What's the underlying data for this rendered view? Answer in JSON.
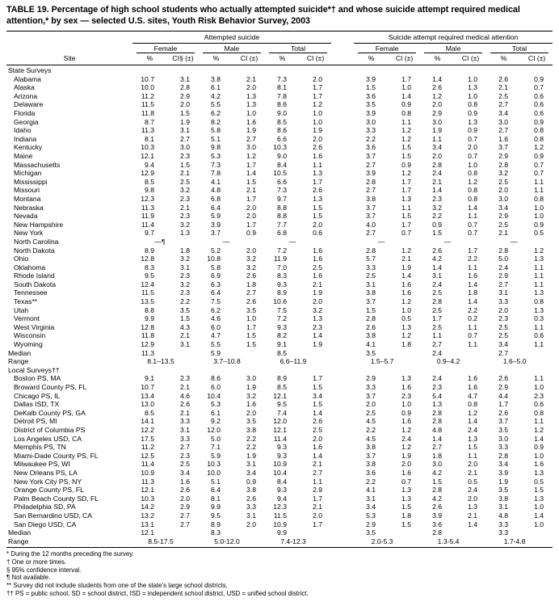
{
  "title": "TABLE 19. Percentage of high school students who actually attempted suicide*† and whose suicide attempt required medical attention,* by sex — selected U.S. sites, Youth Risk Behavior Survey, 2003",
  "header": {
    "site": "Site",
    "groups": [
      "Attempted suicide",
      "Suicide attempt required medical attention"
    ],
    "subgroups": [
      "Female",
      "Male",
      "Total"
    ],
    "pct": "%",
    "ci_first": "CI§ (±)",
    "ci": "CI (±)"
  },
  "sections": [
    {
      "name": "State Surveys",
      "rows": [
        {
          "site": "Alabama",
          "v": [
            "10.7",
            "3.1",
            "3.8",
            "2.1",
            "7.3",
            "2.0",
            "3.9",
            "1.7",
            "1.4",
            "1.0",
            "2.6",
            "0.9"
          ]
        },
        {
          "site": "Alaska",
          "v": [
            "10.0",
            "2.8",
            "6.1",
            "2.0",
            "8.1",
            "1.7",
            "1.5",
            "1.0",
            "2.6",
            "1.3",
            "2.1",
            "0.7"
          ]
        },
        {
          "site": "Arizona",
          "v": [
            "11.2",
            "2.9",
            "4.2",
            "1.3",
            "7.8",
            "1.7",
            "3.6",
            "1.4",
            "1.2",
            "1.0",
            "2.5",
            "0.6"
          ]
        },
        {
          "site": "Delaware",
          "v": [
            "11.5",
            "2.0",
            "5.5",
            "1.3",
            "8.6",
            "1.2",
            "3.5",
            "0.9",
            "2.0",
            "0.8",
            "2.7",
            "0.6"
          ]
        },
        {
          "site": "Florida",
          "v": [
            "11.8",
            "1.5",
            "6.2",
            "1.0",
            "9.0",
            "1.0",
            "3.9",
            "0.8",
            "2.9",
            "0.9",
            "3.4",
            "0.6"
          ]
        },
        {
          "site": "Georgia",
          "v": [
            "8.7",
            "1.9",
            "8.2",
            "1.6",
            "8.5",
            "1.0",
            "3.0",
            "1.1",
            "3.0",
            "1.3",
            "3.0",
            "0.9"
          ]
        },
        {
          "site": "Idaho",
          "v": [
            "11.3",
            "3.1",
            "5.8",
            "1.9",
            "8.6",
            "1.9",
            "3.3",
            "1.2",
            "1.9",
            "0.9",
            "2.7",
            "0.8"
          ]
        },
        {
          "site": "Indiana",
          "v": [
            "8.1",
            "2.7",
            "5.1",
            "2.7",
            "6.6",
            "2.0",
            "2.2",
            "1.2",
            "1.1",
            "0.7",
            "1.6",
            "0.8"
          ]
        },
        {
          "site": "Kentucky",
          "v": [
            "10.3",
            "3.0",
            "9.8",
            "3.0",
            "10.3",
            "2.6",
            "3.6",
            "1.5",
            "3.4",
            "2.0",
            "3.7",
            "1.2"
          ]
        },
        {
          "site": "Maine",
          "v": [
            "12.1",
            "2.3",
            "5.3",
            "1.2",
            "9.0",
            "1.6",
            "3.7",
            "1.5",
            "2.0",
            "0.7",
            "2.9",
            "0.9"
          ]
        },
        {
          "site": "Massachusetts",
          "v": [
            "9.4",
            "1.5",
            "7.3",
            "1.7",
            "8.4",
            "1.1",
            "2.7",
            "0.9",
            "2.8",
            "1.0",
            "2.8",
            "0.7"
          ]
        },
        {
          "site": "Michigan",
          "v": [
            "12.9",
            "2.1",
            "7.8",
            "1.4",
            "10.5",
            "1.3",
            "3.9",
            "1.2",
            "2.4",
            "0.8",
            "3.2",
            "0.7"
          ]
        },
        {
          "site": "Mississippi",
          "v": [
            "8.5",
            "2.5",
            "4.1",
            "1.5",
            "6.6",
            "1.7",
            "2.8",
            "1.7",
            "2.1",
            "1.2",
            "2.5",
            "1.1"
          ]
        },
        {
          "site": "Missouri",
          "v": [
            "9.8",
            "3.2",
            "4.8",
            "2.1",
            "7.3",
            "2.6",
            "2.7",
            "1.7",
            "1.4",
            "0.8",
            "2.0",
            "1.1"
          ]
        },
        {
          "site": "Montana",
          "v": [
            "12.3",
            "2.3",
            "6.8",
            "1.7",
            "9.7",
            "1.3",
            "3.8",
            "1.3",
            "2.3",
            "0.8",
            "3.0",
            "0.8"
          ]
        },
        {
          "site": "Nebraska",
          "v": [
            "11.3",
            "2.1",
            "6.4",
            "2.0",
            "8.8",
            "1.5",
            "3.7",
            "1.1",
            "3.2",
            "1.4",
            "3.4",
            "1.0"
          ]
        },
        {
          "site": "Nevada",
          "v": [
            "11.9",
            "2.3",
            "5.9",
            "2.0",
            "8.8",
            "1.5",
            "3.7",
            "1.5",
            "2.2",
            "1.1",
            "2.9",
            "1.0"
          ]
        },
        {
          "site": "New Hampshire",
          "v": [
            "11.4",
            "3.2",
            "3.9",
            "1.7",
            "7.7",
            "2.0",
            "4.0",
            "1.7",
            "0.9",
            "0.7",
            "2.5",
            "0.9"
          ]
        },
        {
          "site": "New York",
          "v": [
            "9.7",
            "1.3",
            "3.7",
            "0.9",
            "6.8",
            "0.6",
            "2.7",
            "0.7",
            "1.5",
            "0.7",
            "2.1",
            "0.5"
          ]
        },
        {
          "site": "North Carolina",
          "na": [
            "—¶",
            "—",
            "—",
            "—",
            "—",
            "—"
          ]
        },
        {
          "site": "North Dakota",
          "v": [
            "8.9",
            "1.8",
            "5.2",
            "2.0",
            "7.2",
            "1.6",
            "2.8",
            "1.2",
            "2.6",
            "1.7",
            "2.8",
            "1.2"
          ]
        },
        {
          "site": "Ohio",
          "v": [
            "12.8",
            "3.2",
            "10.8",
            "3.2",
            "11.9",
            "1.6",
            "5.7",
            "2.1",
            "4.2",
            "2.2",
            "5.0",
            "1.3"
          ]
        },
        {
          "site": "Oklahoma",
          "v": [
            "8.3",
            "3.1",
            "5.8",
            "3.2",
            "7.0",
            "2.5",
            "3.3",
            "1.9",
            "1.4",
            "1.1",
            "2.4",
            "1.1"
          ]
        },
        {
          "site": "Rhode Island",
          "v": [
            "9.5",
            "2.3",
            "6.9",
            "2.6",
            "8.3",
            "1.6",
            "2.5",
            "1.4",
            "3.1",
            "1.6",
            "2.9",
            "1.1"
          ]
        },
        {
          "site": "South Dakota",
          "v": [
            "12.4",
            "3.2",
            "6.3",
            "1.8",
            "9.3",
            "2.1",
            "3.1",
            "1.6",
            "2.4",
            "1.4",
            "2.7",
            "1.1"
          ]
        },
        {
          "site": "Tennessee",
          "v": [
            "11.5",
            "2.3",
            "6.4",
            "2.7",
            "8.9",
            "1.9",
            "3.8",
            "1.6",
            "2.5",
            "1.8",
            "3.1",
            "1.3"
          ]
        },
        {
          "site": "Texas**",
          "v": [
            "13.5",
            "2.2",
            "7.5",
            "2.6",
            "10.6",
            "2.0",
            "3.7",
            "1.2",
            "2.8",
            "1.4",
            "3.3",
            "0.8"
          ]
        },
        {
          "site": "Utah",
          "v": [
            "8.8",
            "3.5",
            "6.2",
            "3.5",
            "7.5",
            "3.2",
            "1.5",
            "1.0",
            "2.5",
            "2.2",
            "2.0",
            "1.3"
          ]
        },
        {
          "site": "Vermont",
          "v": [
            "9.9",
            "1.5",
            "4.6",
            "1.0",
            "7.2",
            "1.3",
            "2.8",
            "0.5",
            "1.7",
            "0.2",
            "2.3",
            "0.3"
          ]
        },
        {
          "site": "West Virginia",
          "v": [
            "12.8",
            "4.3",
            "6.0",
            "1.7",
            "9.3",
            "2.3",
            "2.6",
            "1.3",
            "2.5",
            "1.1",
            "2.5",
            "1.1"
          ]
        },
        {
          "site": "Wisconsin",
          "v": [
            "11.8",
            "2.1",
            "4.7",
            "1.5",
            "8.2",
            "1.4",
            "3.8",
            "1.2",
            "1.1",
            "0.7",
            "2.5",
            "0.6"
          ]
        },
        {
          "site": "Wyoming",
          "v": [
            "12.9",
            "3.1",
            "5.5",
            "1.5",
            "9.1",
            "1.9",
            "4.1",
            "1.8",
            "2.7",
            "1.1",
            "3.4",
            "1.1"
          ]
        }
      ],
      "median": {
        "label": "Median",
        "values": [
          "11.3",
          "5.9",
          "8.5",
          "3.5",
          "2.4",
          "2.7"
        ]
      },
      "range": {
        "label": "Range",
        "values": [
          "8.1–13.5",
          "3.7–10.8",
          "6.6–11.9",
          "1.5–5.7",
          "0.9–4.2",
          "1.6–5.0"
        ]
      }
    },
    {
      "name": "Local Surveys††",
      "rows": [
        {
          "site": "Boston PS, MA",
          "v": [
            "9.1",
            "2.3",
            "8.6",
            "3.0",
            "8.9",
            "1.7",
            "2.9",
            "1.3",
            "2.4",
            "1.6",
            "2.6",
            "1.1"
          ]
        },
        {
          "site": "Broward County PS, FL",
          "v": [
            "10.7",
            "2.1",
            "6.0",
            "1.9",
            "8.5",
            "1.5",
            "3.3",
            "1.6",
            "2.3",
            "1.6",
            "2.9",
            "1.0"
          ]
        },
        {
          "site": "Chicago PS, IL",
          "v": [
            "13.4",
            "4.6",
            "10.4",
            "3.2",
            "12.1",
            "3.4",
            "3.7",
            "2.3",
            "5.4",
            "4.7",
            "4.4",
            "2.3"
          ]
        },
        {
          "site": "Dallas ISD, TX",
          "v": [
            "13.0",
            "2.6",
            "5.3",
            "1.6",
            "9.5",
            "1.5",
            "2.0",
            "1.0",
            "1.3",
            "0.8",
            "1.7",
            "0.6"
          ]
        },
        {
          "site": "DeKalb County PS, GA",
          "v": [
            "8.5",
            "2.1",
            "6.1",
            "2.0",
            "7.4",
            "1.4",
            "2.5",
            "0.9",
            "2.8",
            "1.2",
            "2.6",
            "0.8"
          ]
        },
        {
          "site": "Detroit PS, MI",
          "v": [
            "14.1",
            "3.3",
            "9.2",
            "3.5",
            "12.0",
            "2.6",
            "4.5",
            "1.6",
            "2.8",
            "1.4",
            "3.7",
            "1.1"
          ]
        },
        {
          "site": "District of Columbia PS",
          "v": [
            "12.2",
            "3.1",
            "12.0",
            "3.8",
            "12.1",
            "2.5",
            "2.2",
            "1.2",
            "4.8",
            "2.4",
            "3.5",
            "1.2"
          ]
        },
        {
          "site": "Los Angeles USD, CA",
          "v": [
            "17.5",
            "3.3",
            "5.0",
            "2.2",
            "11.4",
            "2.0",
            "4.5",
            "2.4",
            "1.4",
            "1.3",
            "3.0",
            "1.4"
          ]
        },
        {
          "site": "Memphis PS, TN",
          "v": [
            "11.2",
            "2.7",
            "7.1",
            "2.2",
            "9.3",
            "1.6",
            "3.8",
            "1.2",
            "2.7",
            "1.5",
            "3.3",
            "0.9"
          ]
        },
        {
          "site": "Miami-Dade County PS, FL",
          "v": [
            "12.5",
            "2.3",
            "5.9",
            "1.9",
            "9.3",
            "1.4",
            "3.7",
            "1.9",
            "1.8",
            "1.1",
            "2.8",
            "1.0"
          ]
        },
        {
          "site": "Milwaukee PS, WI",
          "v": [
            "11.4",
            "2.5",
            "10.3",
            "3.1",
            "10.9",
            "2.1",
            "3.8",
            "2.0",
            "3.0",
            "2.0",
            "3.4",
            "1.6"
          ]
        },
        {
          "site": "New Orleans PS, LA",
          "v": [
            "10.9",
            "3.4",
            "10.0",
            "3.4",
            "10.4",
            "2.7",
            "3.6",
            "1.6",
            "4.2",
            "2.1",
            "3.9",
            "1.3"
          ]
        },
        {
          "site": "New York City PS, NY",
          "v": [
            "11.3",
            "1.6",
            "5.1",
            "0.9",
            "8.4",
            "1.1",
            "2.2",
            "0.7",
            "1.5",
            "0.5",
            "1.9",
            "0.5"
          ]
        },
        {
          "site": "Orange County PS, FL",
          "v": [
            "12.1",
            "2.6",
            "6.4",
            "3.8",
            "9.3",
            "2.9",
            "4.1",
            "1.3",
            "2.8",
            "2.4",
            "3.5",
            "1.5"
          ]
        },
        {
          "site": "Palm Beach County SD, FL",
          "v": [
            "10.3",
            "2.0",
            "8.1",
            "2.6",
            "9.4",
            "1.7",
            "3.1",
            "1.3",
            "4.2",
            "2.0",
            "3.8",
            "1.3"
          ]
        },
        {
          "site": "Philadelphia SD, PA",
          "v": [
            "14.2",
            "2.9",
            "9.9",
            "3.3",
            "12.3",
            "2.1",
            "3.4",
            "1.5",
            "2.6",
            "1.3",
            "3.1",
            "1.0"
          ]
        },
        {
          "site": "San Bernardino USD, CA",
          "v": [
            "13.2",
            "2.7",
            "9.5",
            "3.1",
            "11.5",
            "2.0",
            "5.3",
            "1.8",
            "3.9",
            "2.1",
            "4.8",
            "1.4"
          ]
        },
        {
          "site": "San Diego USD, CA",
          "v": [
            "13.1",
            "2.7",
            "8.9",
            "2.0",
            "10.9",
            "1.7",
            "2.9",
            "1.5",
            "3.6",
            "1.4",
            "3.3",
            "1.0"
          ]
        }
      ],
      "median": {
        "label": "Median",
        "values": [
          "12.1",
          "8.3",
          "9.9",
          "3.5",
          "2.8",
          "3.3"
        ]
      },
      "range": {
        "label": "Range",
        "values": [
          "8.5-17.5",
          "5.0-12.0",
          "7.4-12.3",
          "2.0-5.3",
          "1.3-5.4",
          "1.7-4.8"
        ]
      }
    }
  ],
  "footnotes": [
    "* During the 12 months preceding the survey.",
    "† One or more times.",
    "§ 95% confidence interval.",
    "¶ Not available.",
    "** Survey did not include students from one of the state's large school districts.",
    "†† PS = public school, SD = school district, ISD = independent school district, USD = unified school district."
  ]
}
